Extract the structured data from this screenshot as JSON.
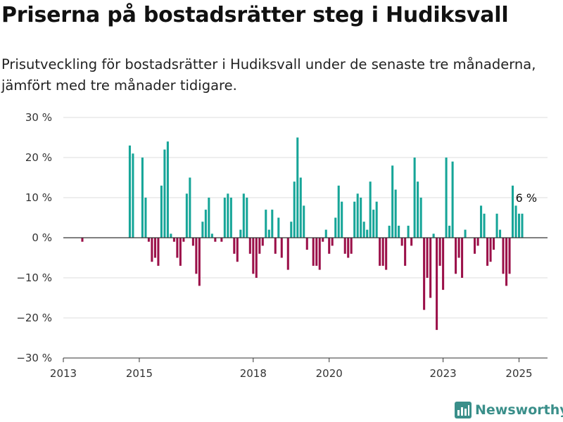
{
  "title": "Priserna på bostadsrätter steg i Hudiksvall",
  "subtitle": "Prisutveckling för bostadsrätter i Hudiksvall under de senaste tre månaderna, jämfört med tre månader tidigare.",
  "brand": {
    "name": "Newsworthy",
    "icon": "newsworthy-logo-icon"
  },
  "colors": {
    "positive": "#16a598",
    "negative": "#9b1049",
    "grid": "#dddddd",
    "zero": "#333333"
  },
  "chart_data": {
    "type": "bar",
    "title": "Priserna på bostadsrätter steg i Hudiksvall",
    "ylim": [
      -30,
      30
    ],
    "xlim": [
      2013.0,
      2025.75
    ],
    "yticks": [
      30,
      20,
      10,
      0,
      -10,
      -20,
      -30
    ],
    "ytick_labels": [
      "30 %",
      "20 %",
      "10 %",
      "0 %",
      "−10 %",
      "−20 %",
      "−30 %"
    ],
    "xticks": [
      2013,
      2015,
      2018,
      2020,
      2023,
      2025
    ],
    "xtick_labels": [
      "2013",
      "2015",
      "2018",
      "2020",
      "2023",
      "2025"
    ],
    "grid": true,
    "annotation": {
      "text": "6 %",
      "x": 2025.08,
      "y": 6
    },
    "x": [
      2013.5,
      2013.583,
      2013.667,
      2013.75,
      2013.833,
      2013.917,
      2014.0,
      2014.083,
      2014.167,
      2014.25,
      2014.333,
      2014.417,
      2014.5,
      2014.583,
      2014.667,
      2014.75,
      2014.833,
      2014.917,
      2015.0,
      2015.083,
      2015.167,
      2015.25,
      2015.333,
      2015.417,
      2015.5,
      2015.583,
      2015.667,
      2015.75,
      2015.833,
      2015.917,
      2016.0,
      2016.083,
      2016.167,
      2016.25,
      2016.333,
      2016.417,
      2016.5,
      2016.583,
      2016.667,
      2016.75,
      2016.833,
      2016.917,
      2017.0,
      2017.083,
      2017.167,
      2017.25,
      2017.333,
      2017.417,
      2017.5,
      2017.583,
      2017.667,
      2017.75,
      2017.833,
      2017.917,
      2018.0,
      2018.083,
      2018.167,
      2018.25,
      2018.333,
      2018.417,
      2018.5,
      2018.583,
      2018.667,
      2018.75,
      2018.833,
      2018.917,
      2019.0,
      2019.083,
      2019.167,
      2019.25,
      2019.333,
      2019.417,
      2019.5,
      2019.583,
      2019.667,
      2019.75,
      2019.833,
      2019.917,
      2020.0,
      2020.083,
      2020.167,
      2020.25,
      2020.333,
      2020.417,
      2020.5,
      2020.583,
      2020.667,
      2020.75,
      2020.833,
      2020.917,
      2021.0,
      2021.083,
      2021.167,
      2021.25,
      2021.333,
      2021.417,
      2021.5,
      2021.583,
      2021.667,
      2021.75,
      2021.833,
      2021.917,
      2022.0,
      2022.083,
      2022.167,
      2022.25,
      2022.333,
      2022.417,
      2022.5,
      2022.583,
      2022.667,
      2022.75,
      2022.833,
      2022.917,
      2023.0,
      2023.083,
      2023.167,
      2023.25,
      2023.333,
      2023.417,
      2023.5,
      2023.583,
      2023.667,
      2023.75,
      2023.833,
      2023.917,
      2024.0,
      2024.083,
      2024.167,
      2024.25,
      2024.333,
      2024.417,
      2024.5,
      2024.583,
      2024.667,
      2024.75,
      2024.833,
      2024.917,
      2025.0,
      2025.083
    ],
    "values": [
      -1,
      0,
      0,
      0,
      0,
      0,
      0,
      0,
      0,
      0,
      0,
      0,
      0,
      0,
      0,
      23,
      21,
      0,
      0,
      20,
      10,
      -1,
      -6,
      -5,
      -7,
      13,
      22,
      24,
      1,
      -1,
      -5,
      -7,
      -1,
      11,
      15,
      -2,
      -9,
      -12,
      4,
      7,
      10,
      1,
      -1,
      0,
      -1,
      10,
      11,
      10,
      -4,
      -6,
      2,
      11,
      10,
      -4,
      -9,
      -10,
      -4,
      -2,
      7,
      2,
      7,
      -4,
      5,
      -5,
      0,
      -8,
      4,
      14,
      25,
      15,
      8,
      -3,
      0,
      -7,
      -7,
      -8,
      -1,
      2,
      -4,
      -2,
      5,
      13,
      9,
      -4,
      -5,
      -4,
      9,
      11,
      10,
      4,
      2,
      14,
      7,
      9,
      -7,
      -7,
      -8,
      3,
      18,
      12,
      3,
      -2,
      -7,
      3,
      -2,
      20,
      14,
      10,
      -18,
      -10,
      -15,
      1,
      -23,
      -7,
      -13,
      20,
      3,
      19,
      -9,
      -5,
      -10,
      2,
      0,
      0,
      -4,
      -2,
      8,
      6,
      -7,
      -6,
      -3,
      6,
      2,
      -9,
      -12,
      -9,
      13,
      8,
      6,
      6
    ]
  }
}
